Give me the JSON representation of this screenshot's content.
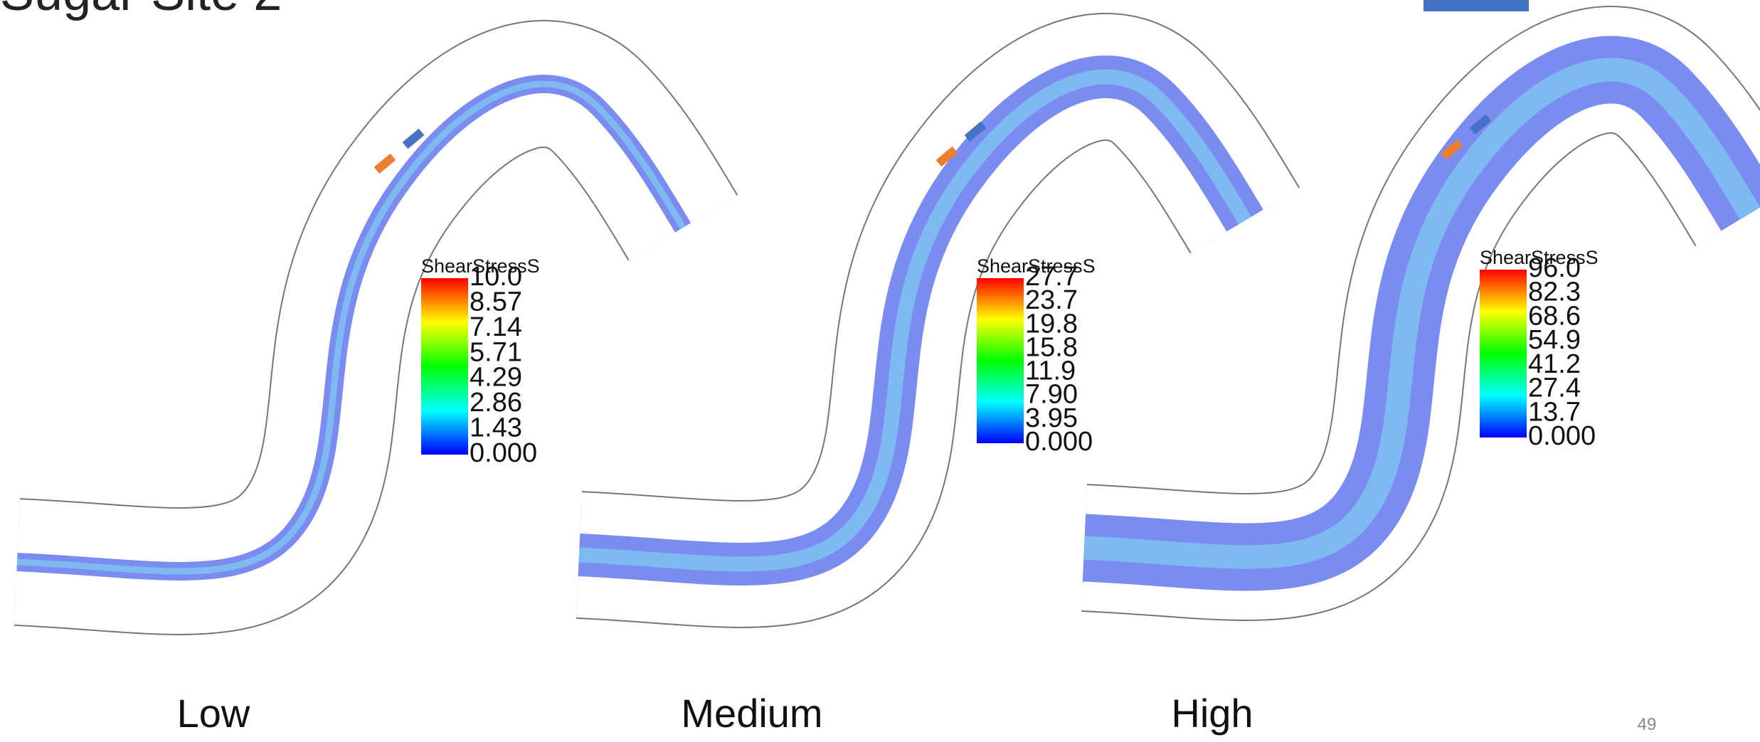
{
  "header": {
    "title": "Sugar Site 2"
  },
  "panels": [
    {
      "label": "Low",
      "legend": {
        "title": "ShearStressS",
        "ticks": [
          "10.0",
          "8.57",
          "7.14",
          "5.71",
          "4.29",
          "2.86",
          "1.43",
          "0.000"
        ]
      }
    },
    {
      "label": "Medium",
      "legend": {
        "title": "ShearStressS",
        "ticks": [
          "27.7",
          "23.7",
          "19.8",
          "15.8",
          "11.9",
          "7.90",
          "3.95",
          "0.000"
        ]
      }
    },
    {
      "label": "High",
      "legend": {
        "title": "ShearStressS",
        "ticks": [
          "96.0",
          "82.3",
          "68.6",
          "54.9",
          "41.2",
          "27.4",
          "13.7",
          "0.000"
        ]
      }
    }
  ],
  "page_number": "49"
}
